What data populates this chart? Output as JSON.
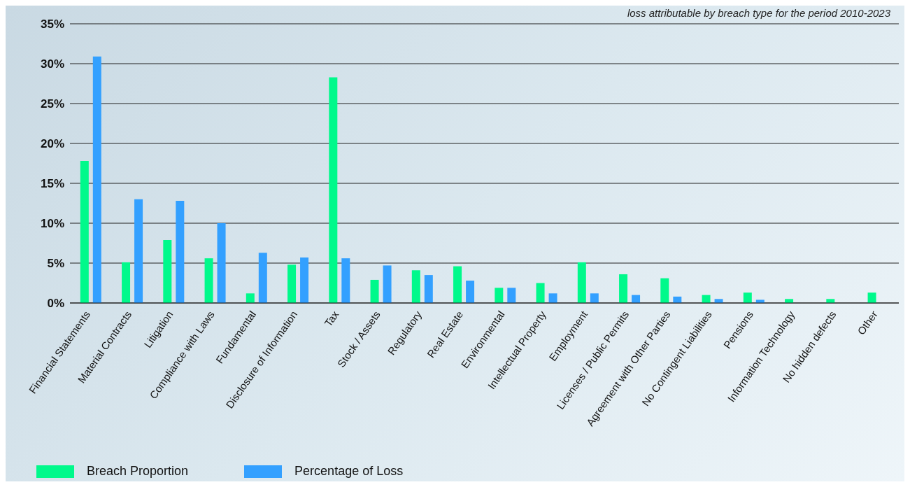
{
  "chart_data": {
    "type": "bar",
    "subtitle": "loss attributable by breach type for the period 2010-2023",
    "categories": [
      "Financial Statements",
      "Material Contracts",
      "Litigation",
      "Compliance with Laws",
      "Fundamental",
      "Disclosure of Information",
      "Tax",
      "Stock / Assets",
      "Regulatory",
      "Real Estate",
      "Environmental",
      "Intellectual Property",
      "Employment",
      "Licenses / Public Permits",
      "Agreement with Other Parties",
      "No Contingent Liabilities",
      "Pensions",
      "Information Technology",
      "No hidden defects",
      "Other"
    ],
    "series": [
      {
        "name": "Breach Proportion",
        "color": "#00f98b",
        "values": [
          17.8,
          5.1,
          7.9,
          5.6,
          1.2,
          4.8,
          28.3,
          2.9,
          4.1,
          4.6,
          1.9,
          2.5,
          5.1,
          3.6,
          3.1,
          1.0,
          1.3,
          0.5,
          0.5,
          1.3
        ]
      },
      {
        "name": "Percentage of Loss",
        "color": "#33a0ff",
        "values": [
          30.9,
          13.0,
          12.8,
          10.0,
          6.3,
          5.7,
          5.6,
          4.7,
          3.5,
          2.8,
          1.9,
          1.2,
          1.2,
          1.0,
          0.8,
          0.5,
          0.4,
          0,
          0,
          0
        ]
      }
    ],
    "ylim": [
      0,
      35
    ],
    "yticks": [
      {
        "value": 0,
        "label": "0%"
      },
      {
        "value": 5,
        "label": "5%"
      },
      {
        "value": 10,
        "label": "10%"
      },
      {
        "value": 15,
        "label": "15%"
      },
      {
        "value": 20,
        "label": "20%"
      },
      {
        "value": 25,
        "label": "25%"
      },
      {
        "value": 30,
        "label": "30%"
      },
      {
        "value": 35,
        "label": "35%"
      }
    ],
    "grid": "y",
    "legend": "bottom left"
  }
}
